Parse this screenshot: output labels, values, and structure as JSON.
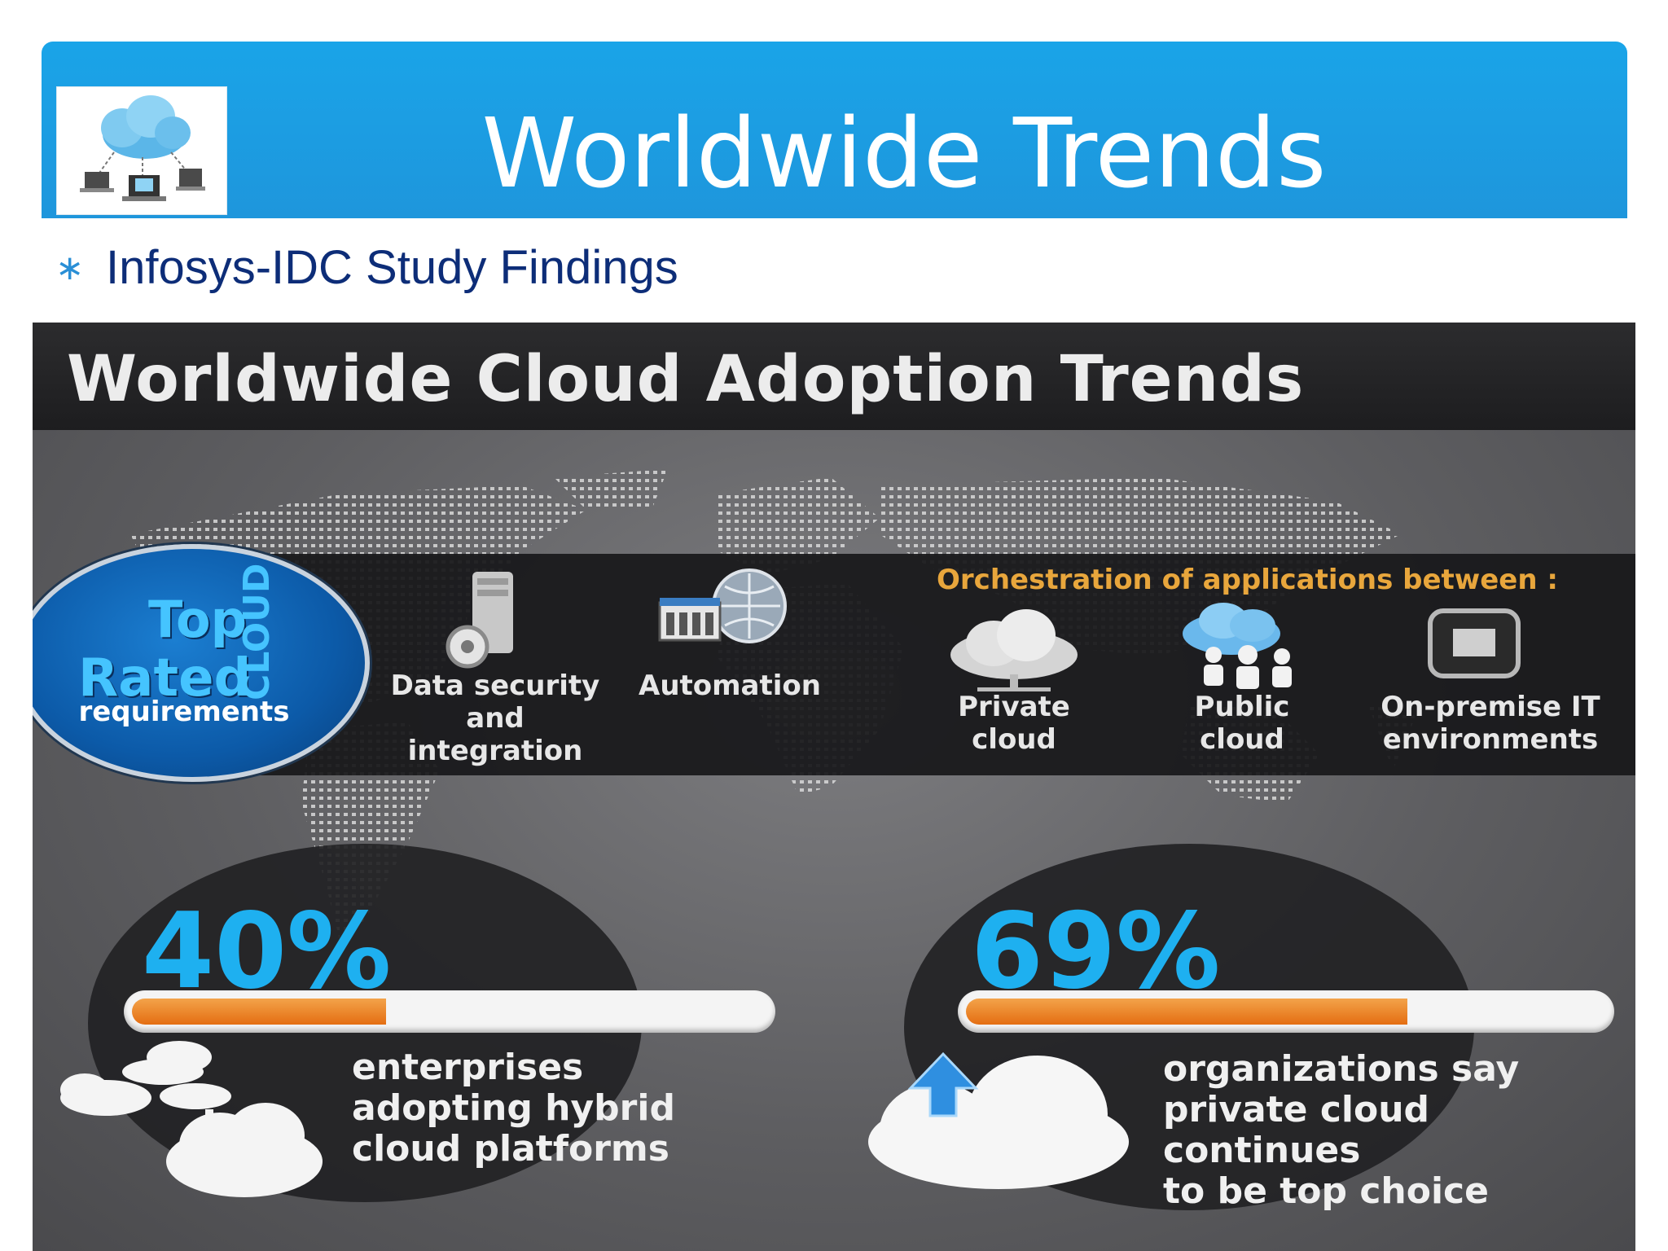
{
  "slide": {
    "title": "Worldwide Trends",
    "bullet_glyph": "∗",
    "bullet_text": "Infosys-IDC Study Findings",
    "logo_icon": "cloud-network-icon"
  },
  "infographic": {
    "title": "Worldwide Cloud Adoption Trends",
    "badge": {
      "line1": "Top",
      "line2": "Rated",
      "vertical": "CLOUD",
      "line3": "requirements"
    },
    "requirements": [
      {
        "icon": "data-security-icon",
        "label": "Data security\nand\nintegration"
      },
      {
        "icon": "automation-icon",
        "label": "Automation"
      }
    ],
    "orchestration": {
      "heading": "Orchestration of applications between :",
      "items": [
        {
          "icon": "private-cloud-icon",
          "label": "Private\ncloud"
        },
        {
          "icon": "public-cloud-icon",
          "label": "Public\ncloud"
        },
        {
          "icon": "on-premise-icon",
          "label": "On-premise IT\nenvironments"
        }
      ]
    },
    "stats": [
      {
        "value": "40%",
        "fraction": 0.4,
        "description": "enterprises\nadopting hybrid\ncloud platforms"
      },
      {
        "value": "69%",
        "fraction": 0.69,
        "description": "organizations say\nprivate cloud continues\nto be top choice"
      }
    ],
    "colors": {
      "accent": "#1eb0f0",
      "progress": "#e46e12",
      "heading": "#e8a63c",
      "title_bar": "#1aa4e8"
    }
  }
}
